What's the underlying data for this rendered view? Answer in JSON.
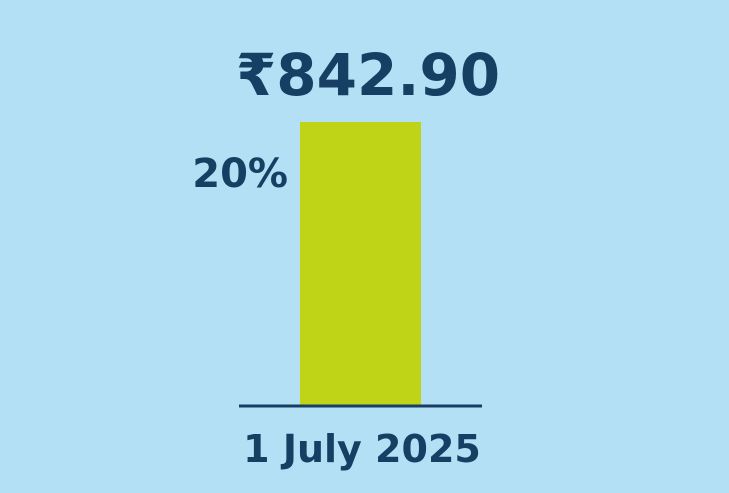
{
  "chart_data": {
    "type": "bar",
    "categories": [
      "1 July 2025"
    ],
    "values": [
      842.9
    ],
    "value_labels": [
      "₹842.90"
    ],
    "annotations": [
      "20%"
    ],
    "ylim": [
      0,
      842.9
    ],
    "grid": false,
    "colors": {
      "background": "#b3e0f5",
      "bar": "#bfd317",
      "text": "#173f63",
      "baseline": "#173f63"
    }
  }
}
